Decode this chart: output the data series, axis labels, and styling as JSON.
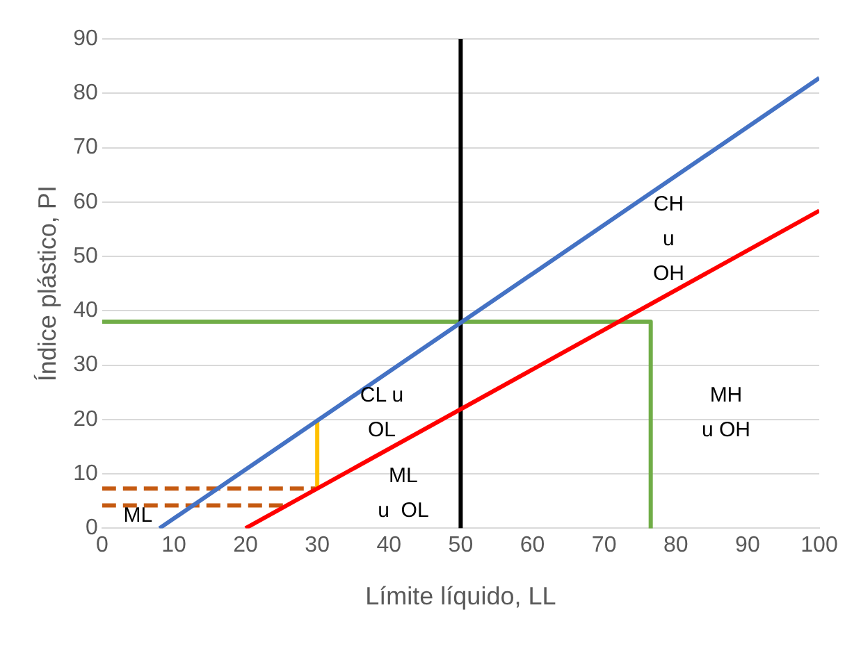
{
  "chart_data": {
    "type": "line",
    "xlabel": "Límite líquido, LL",
    "ylabel": "Índice plástico, PI",
    "xlim": [
      0,
      100
    ],
    "xticks": [
      0,
      10,
      20,
      30,
      40,
      50,
      60,
      70,
      80,
      90,
      100
    ],
    "ylim": [
      0,
      90
    ],
    "yticks": [
      0,
      10,
      20,
      30,
      40,
      50,
      60,
      70,
      80,
      90
    ],
    "grid": "y",
    "legend": false,
    "marker": "none",
    "series": [
      {
        "color": "#4472c4",
        "x": [
          8,
          100
        ],
        "values": [
          0,
          82.8
        ]
      },
      {
        "color": "#ff0000",
        "x": [
          20,
          100
        ],
        "values": [
          0,
          58.4
        ]
      },
      {
        "color": "#000000",
        "x": [
          50,
          50
        ],
        "values": [
          0,
          90
        ]
      },
      {
        "color": "#70ad47",
        "x": [
          0,
          76.5,
          76.5
        ],
        "values": [
          38,
          38,
          0
        ]
      },
      {
        "color": "#ffc000",
        "x": [
          30,
          30
        ],
        "values": [
          7.3,
          19.8
        ]
      },
      {
        "color": "#c55a11",
        "x": [
          0,
          30
        ],
        "values": [
          7.3,
          7.3
        ],
        "line_style": "dashed"
      },
      {
        "color": "#c55a11",
        "x": [
          0,
          26
        ],
        "values": [
          4.2,
          4.2
        ],
        "line_style": "dashed"
      }
    ],
    "annotations": [
      "CH\nu\nOH",
      "CL u\nOL",
      "ML\nu  OL",
      "MH\nu OH",
      "ML"
    ]
  }
}
